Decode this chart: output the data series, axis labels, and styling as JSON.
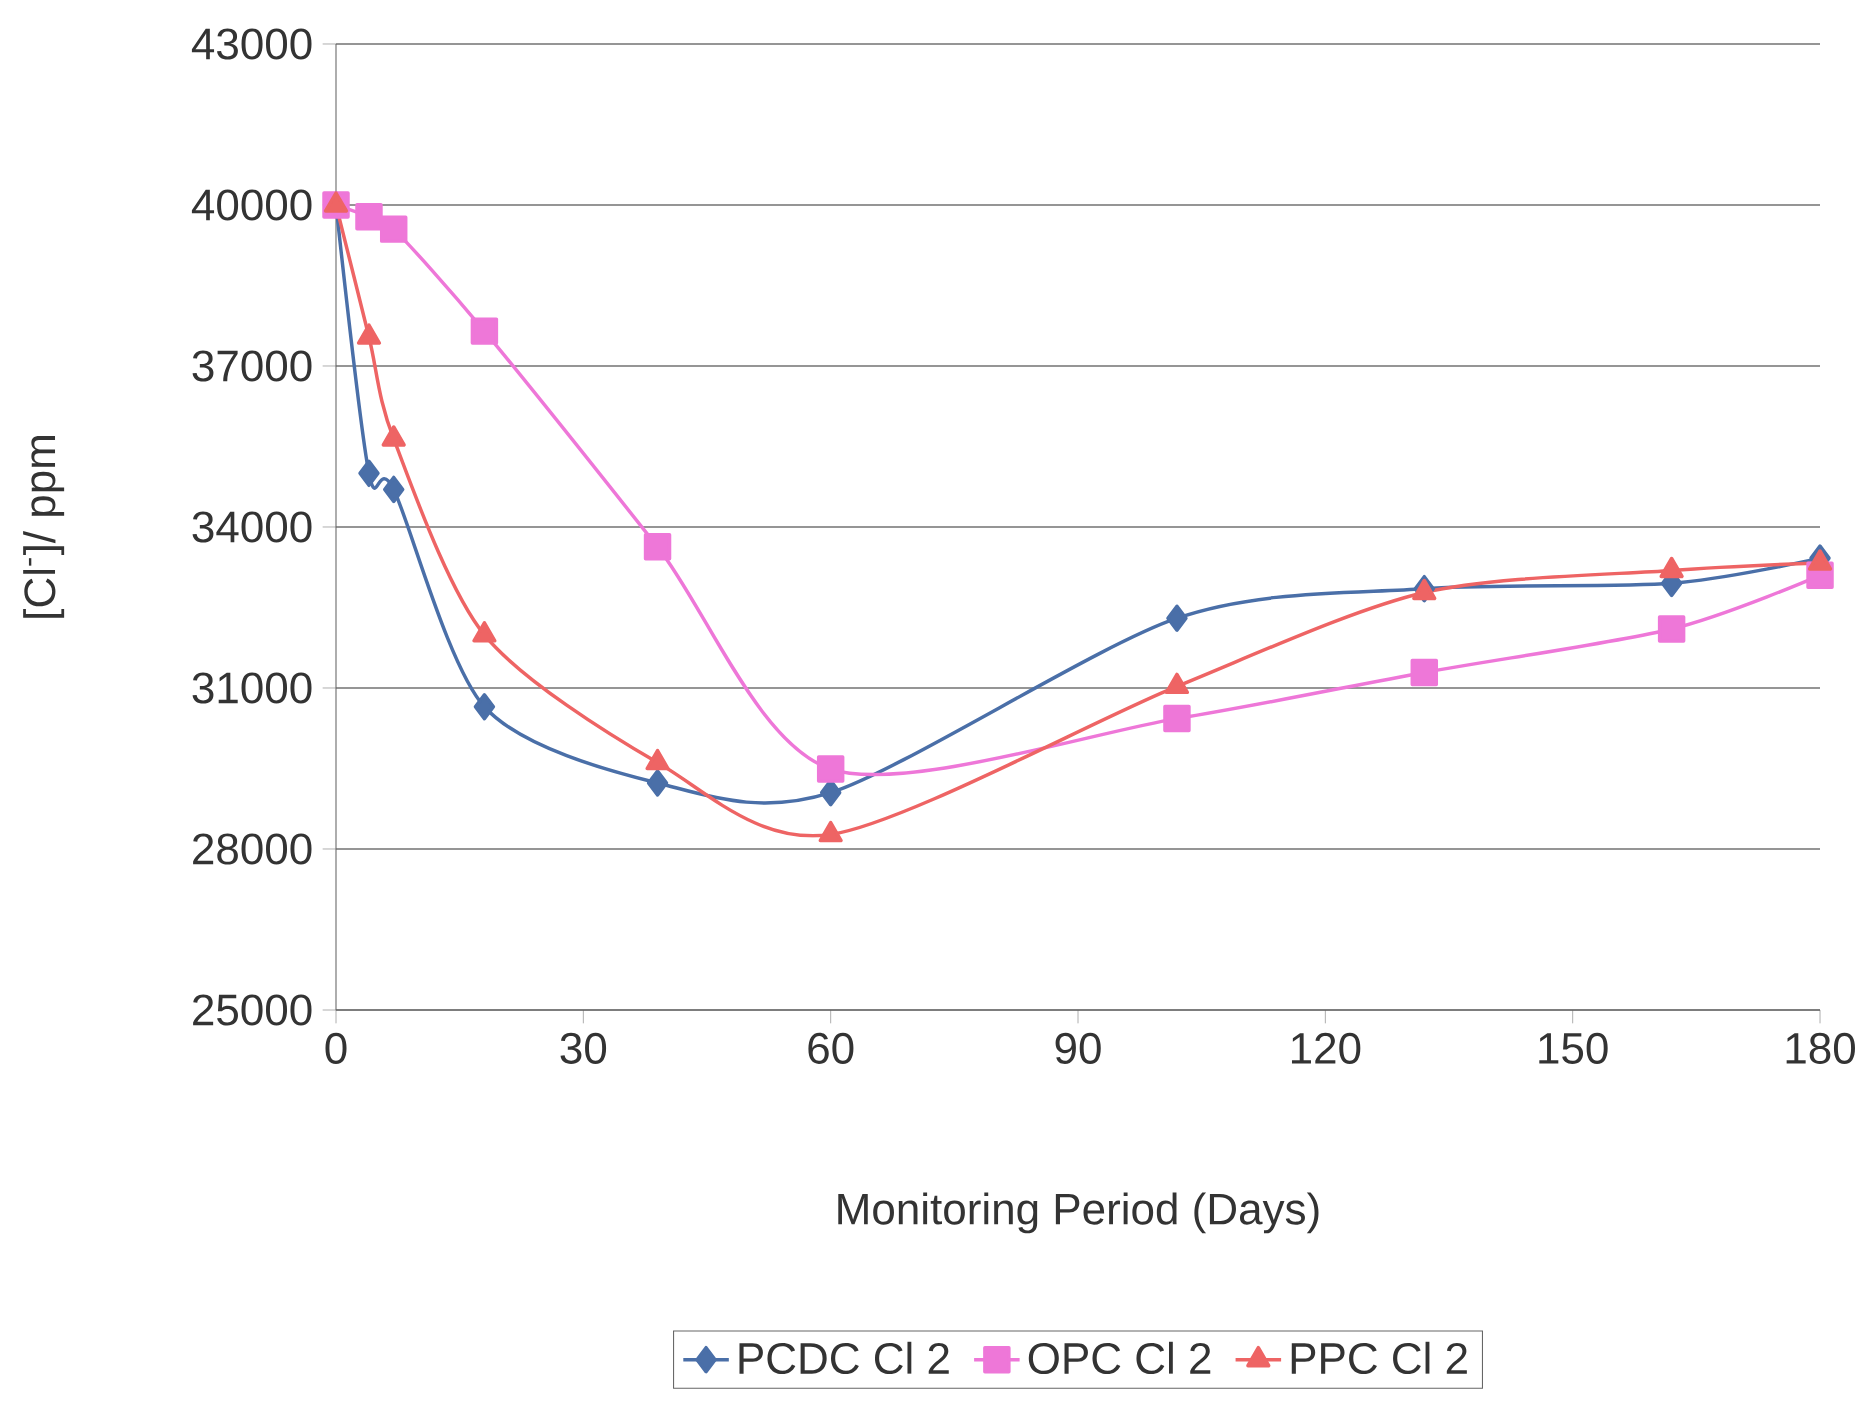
{
  "chart_data": {
    "type": "line",
    "xlabel": "Monitoring Period (Days)",
    "ylabel": "[Cl$^{-}$]/ ppm",
    "x": [
      0,
      4,
      7,
      18,
      39,
      60,
      102,
      132,
      162,
      180
    ],
    "series": [
      {
        "name": "PCDC Cl 2",
        "color": "#4a6fa8",
        "marker": "diamond",
        "values": [
          40000,
          35000,
          34700,
          30650,
          29230,
          29050,
          32300,
          32850,
          32950,
          33420
        ]
      },
      {
        "name": "OPC Cl 2",
        "color": "#ee77d8",
        "marker": "square",
        "values": [
          40000,
          39780,
          39550,
          37650,
          33630,
          29490,
          30430,
          31290,
          32100,
          33100
        ]
      },
      {
        "name": "PPC Cl 2",
        "color": "#ee6464",
        "marker": "triangle",
        "values": [
          40000,
          37540,
          35640,
          31990,
          29610,
          28270,
          31030,
          32780,
          33190,
          33330
        ]
      }
    ],
    "xlim": [
      0,
      180
    ],
    "xticks": [
      0,
      30,
      60,
      90,
      120,
      150,
      180
    ],
    "ylim": [
      25000,
      43000
    ],
    "yticks": [
      25000,
      28000,
      31000,
      34000,
      37000,
      40000,
      43000
    ],
    "grid": "y",
    "legend": "bottom",
    "line_style": "solid"
  }
}
